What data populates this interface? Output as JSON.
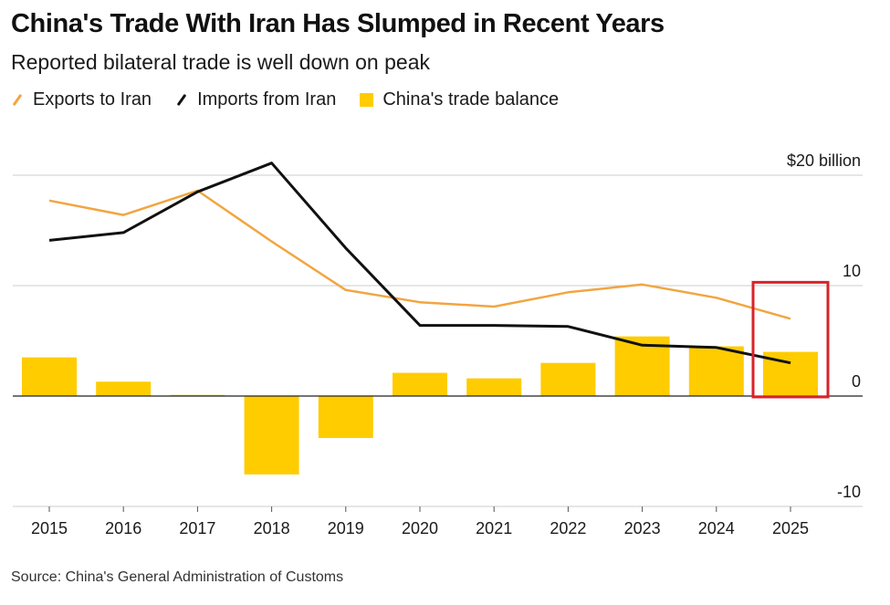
{
  "title": "China's Trade With Iran Has Slumped in Recent Years",
  "subtitle": "Reported bilateral trade is well down on peak",
  "source": "Source: China's General Administration of Customs",
  "colors": {
    "exports": "#f2a541",
    "imports": "#111111",
    "balance": "#ffcc00",
    "grid": "#cccccc",
    "zero_line": "#222222",
    "highlight": "#d9232a"
  },
  "legend": [
    {
      "label": "Exports to Iran",
      "style": "line",
      "color": "#f2a541"
    },
    {
      "label": "Imports from Iran",
      "style": "line",
      "color": "#111111"
    },
    {
      "label": "China's trade balance",
      "style": "box",
      "color": "#ffcc00"
    }
  ],
  "chart_data": {
    "type": "bar",
    "categories": [
      "2015",
      "2016",
      "2017",
      "2018",
      "2019",
      "2020",
      "2021",
      "2022",
      "2023",
      "2024",
      "2025"
    ],
    "series": [
      {
        "name": "Exports to Iran",
        "type": "line",
        "values": [
          17.7,
          16.4,
          18.6,
          14.0,
          9.6,
          8.5,
          8.1,
          9.4,
          10.1,
          8.9,
          7.0
        ]
      },
      {
        "name": "Imports from Iran",
        "type": "line",
        "values": [
          14.1,
          14.8,
          18.5,
          21.1,
          13.4,
          6.4,
          6.4,
          6.3,
          4.6,
          4.4,
          3.0
        ]
      },
      {
        "name": "China's trade balance",
        "type": "bar",
        "values": [
          3.5,
          1.3,
          0.1,
          -7.1,
          -3.8,
          2.1,
          1.6,
          3.0,
          5.4,
          4.5,
          4.0
        ]
      }
    ],
    "ylim": [
      -10,
      20
    ],
    "yticks": [
      {
        "value": 20,
        "label": "$20 billion"
      },
      {
        "value": 10,
        "label": "10"
      },
      {
        "value": 0,
        "label": "0"
      },
      {
        "value": -10,
        "label": "-10"
      }
    ],
    "grid": true,
    "legend_position": "top-left",
    "highlight_category": "2025"
  }
}
